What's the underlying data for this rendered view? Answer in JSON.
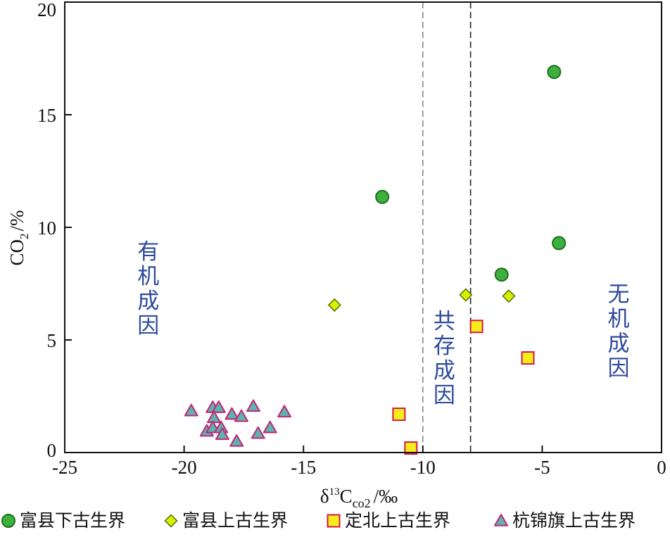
{
  "chart_data": {
    "type": "scatter",
    "xlabel": {
      "base": "δ",
      "sup": "13",
      "main": "C",
      "sub": "CO2",
      "unit": "/‰"
    },
    "ylabel": {
      "main": "CO",
      "sub": "2",
      "unit": "/%"
    },
    "xlim": [
      -25,
      0
    ],
    "ylim": [
      0,
      20
    ],
    "xticks": [
      -25,
      -20,
      -15,
      -10,
      -5,
      0
    ],
    "yticks": [
      0,
      5,
      10,
      15,
      20
    ],
    "reference_lines": [
      {
        "x": -10,
        "style": "dashed",
        "color": "#888888"
      },
      {
        "x": -8,
        "style": "dashed",
        "color": "#222222"
      }
    ],
    "region_labels": [
      {
        "text": "有机成因",
        "x": -21.5,
        "ycenter": 7.3
      },
      {
        "text": "共存成因",
        "x": -9.1,
        "ycenter": 4.2
      },
      {
        "text": "无机成因",
        "x": -1.8,
        "ycenter": 5.4
      }
    ],
    "series": [
      {
        "name": "富县下古生界",
        "marker": "circle",
        "fill": "#3db03d",
        "stroke": "#1f6e1f",
        "points": [
          [
            -11.7,
            11.35
          ],
          [
            -4.5,
            16.9
          ],
          [
            -4.3,
            9.3
          ],
          [
            -6.7,
            7.9
          ]
        ]
      },
      {
        "name": "富县上古生界",
        "marker": "diamond",
        "fill": "#d8f000",
        "stroke": "#556b00",
        "points": [
          [
            -13.7,
            6.55
          ],
          [
            -8.2,
            7.0
          ],
          [
            -6.4,
            6.95
          ]
        ]
      },
      {
        "name": "定北上古生界",
        "marker": "square",
        "fill": "#f5ee1a",
        "stroke": "#d4164b",
        "points": [
          [
            -7.75,
            5.6
          ],
          [
            -5.6,
            4.2
          ],
          [
            -11.0,
            1.7
          ],
          [
            -10.5,
            0.2
          ]
        ]
      },
      {
        "name": "杭锦旗上古生界",
        "marker": "triangle",
        "fill": "#5eb3ae",
        "stroke": "#c2257a",
        "points": [
          [
            -19.7,
            1.85
          ],
          [
            -18.8,
            2.0
          ],
          [
            -18.55,
            2.0
          ],
          [
            -18.75,
            1.55
          ],
          [
            -18.0,
            1.7
          ],
          [
            -17.6,
            1.6
          ],
          [
            -17.1,
            2.05
          ],
          [
            -15.8,
            1.8
          ],
          [
            -19.05,
            0.95
          ],
          [
            -18.8,
            1.1
          ],
          [
            -18.45,
            1.1
          ],
          [
            -18.4,
            0.8
          ],
          [
            -16.9,
            0.85
          ],
          [
            -16.4,
            1.1
          ],
          [
            -17.8,
            0.5
          ]
        ]
      }
    ]
  }
}
